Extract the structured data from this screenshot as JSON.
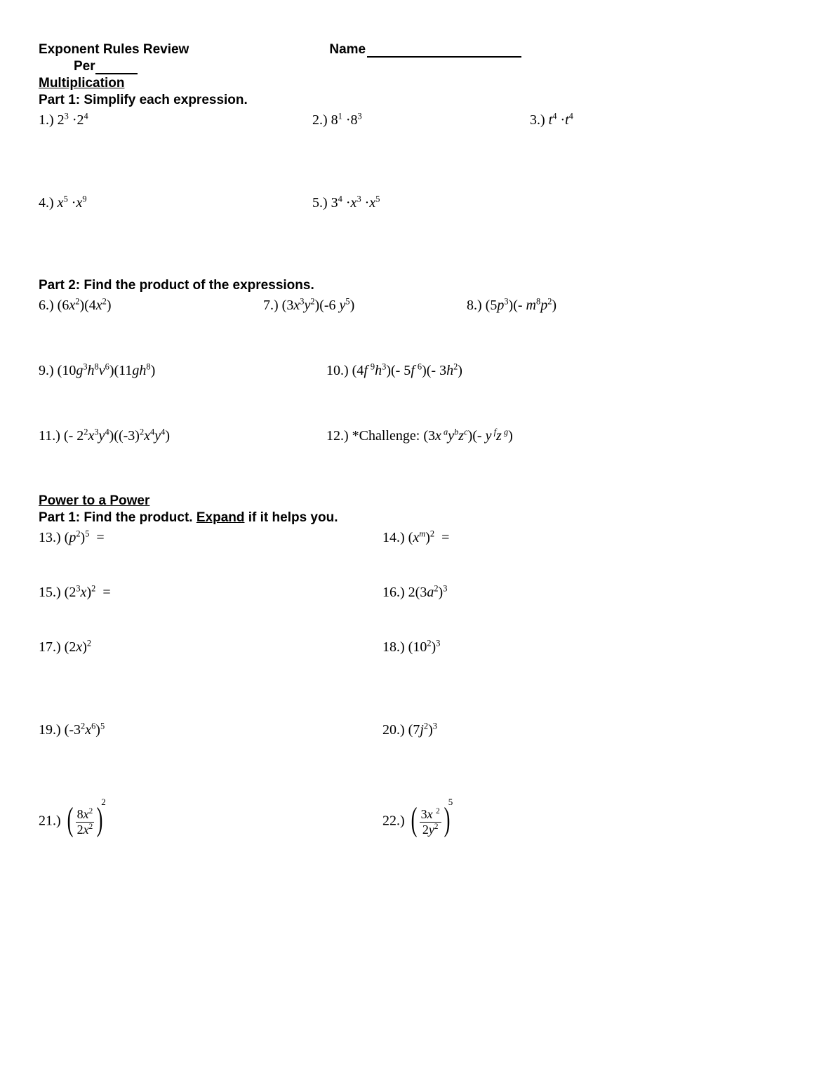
{
  "header": {
    "title": "Exponent Rules Review",
    "name_label": "Name",
    "per_label": "Per"
  },
  "section1": {
    "title": "Multiplication",
    "part1": {
      "title": "Part 1: Simplify each expression.",
      "q1": {
        "num": "1.)",
        "expr_html": "2<sup>3</sup> ·2<sup>4</sup>"
      },
      "q2": {
        "num": "2.)",
        "expr_html": "8<sup>1</sup> ·8<sup>3</sup>"
      },
      "q3": {
        "num": "3.)",
        "expr_html": "<span class='ital'>t</span><sup>4</sup> ·<span class='ital'>t</span><sup>4</sup>"
      },
      "q4": {
        "num": "4.)",
        "expr_html": "<span class='ital'>x</span><sup>5</sup> ·<span class='ital'>x</span><sup>9</sup>"
      },
      "q5": {
        "num": "5.)",
        "expr_html": "3<sup>4</sup> ·<span class='ital'>x</span><sup>3</sup> ·<span class='ital'>x</span><sup>5</sup>"
      }
    },
    "part2": {
      "title": "Part 2: Find the product of the expressions.",
      "q6": {
        "num": "6.)",
        "expr_html": "(6<span class='ital'>x</span><sup>2</sup>)(4<span class='ital'>x</span><sup>2</sup>)"
      },
      "q7": {
        "num": "7.)",
        "expr_html": "(3<span class='ital'>x</span><sup>3</sup><span class='ital'>y</span><sup>2</sup>)(-6&nbsp;<span class='ital'>y</span><sup>5</sup>)"
      },
      "q8": {
        "num": "8.)",
        "expr_html": "(5<span class='ital'>p</span><sup>3</sup>)(- <span class='ital'>m</span><sup>8</sup><span class='ital'>p</span><sup>2</sup>)"
      },
      "q9": {
        "num": "9.)",
        "expr_html": "(10<span class='ital'>g</span><sup>3</sup><span class='ital'>h</span><sup>8</sup><span class='ital'>v</span><sup>6</sup>)(11<span class='ital'>gh</span><sup>8</sup>)"
      },
      "q10": {
        "num": "10.)",
        "expr_html": "(4<span class='ital'>f</span>&thinsp;<sup>9</sup><span class='ital'>h</span><sup>3</sup>)(- 5<span class='ital'>f</span>&thinsp;<sup>6</sup>)(- 3<span class='ital'>h</span><sup>2</sup>)"
      },
      "q11": {
        "num": "11.)",
        "expr_html": "(- 2<sup>2</sup><span class='ital'>x</span><sup>3</sup><span class='ital'>y</span><sup>4</sup>)((-3)<sup>2</sup><span class='ital'>x</span><sup>4</sup><span class='ital'>y</span><sup>4</sup>)"
      },
      "q12": {
        "num": "12.)",
        "label": "*Challenge:",
        "expr_html": "(3<span class='ital'>x</span><sup>&nbsp;<span class='ital'>a</span></sup><span class='ital'>y</span><sup><span class='ital'>b</span></sup><span class='ital'>z</span><sup><span class='ital'>c</span></sup>)(- <span class='ital'>y</span><sup>&nbsp;<span class='ital'>f</span></sup><span class='ital'>z</span><sup>&nbsp;<span class='ital'>g</span></sup>)"
      }
    }
  },
  "section2": {
    "title": "Power to a Power",
    "part1": {
      "title_prefix": "Part 1: Find the product. ",
      "title_underline": "Expand",
      "title_suffix": " if it helps you.",
      "q13": {
        "num": "13.)",
        "expr_html": "(<span class='ital'>p</span><sup>2</sup>)<sup>5</sup>&nbsp; ="
      },
      "q14": {
        "num": "14.)",
        "expr_html": "(<span class='ital'>x</span><sup><span class='ital'>m</span></sup>)<sup>2</sup>&nbsp; ="
      },
      "q15": {
        "num": "15.)",
        "expr_html": "(2<sup>3</sup><span class='ital'>x</span>)<sup>2</sup>&nbsp;&nbsp;="
      },
      "q16": {
        "num": "16.)",
        "expr_html": "2(3<span class='ital'>a</span><sup>2</sup>)<sup>3</sup>"
      },
      "q17": {
        "num": "17.)",
        "expr_html": "(2<span class='ital'>x</span>)<sup>2</sup>"
      },
      "q18": {
        "num": "18.)",
        "expr_html": "(10<sup>2</sup>)<sup>3</sup>"
      },
      "q19": {
        "num": "19.)",
        "expr_html": "(-3<sup>2</sup><span class='ital'>x</span><sup>6</sup>)<sup>5</sup>"
      },
      "q20": {
        "num": "20.)",
        "expr_html": "(7<span class='ital'>j</span><sup>2</sup>)<sup>3</sup>"
      },
      "q21": {
        "num": "21.)",
        "frac_num_html": "8<span class='ital'>x</span><sup>2</sup>",
        "frac_den_html": "2<span class='ital'>x</span><sup>2</sup>",
        "outer_exp": "2"
      },
      "q22": {
        "num": "22.)",
        "frac_num_html": "3<span class='ital'>x</span>&nbsp;<sup>2</sup>",
        "frac_den_html": "2<span class='ital'>y</span><sup>2</sup>",
        "outer_exp": "5"
      }
    }
  }
}
